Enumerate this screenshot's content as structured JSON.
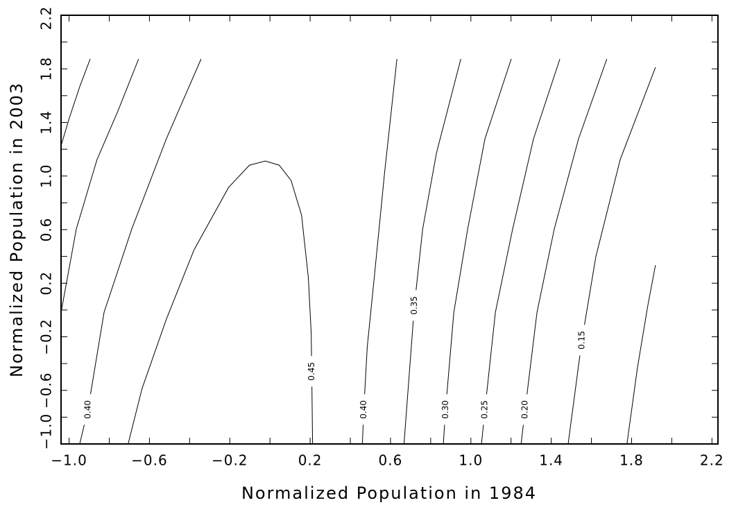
{
  "chart_data": {
    "type": "contour",
    "x_label": "Normalized Population in 1984",
    "y_label": "Normalized Population in 2003",
    "xlim": [
      -1.04,
      2.23
    ],
    "ylim": [
      -1.0,
      2.2
    ],
    "xticks": [
      {
        "value": -1.0,
        "label": "−1.0"
      },
      {
        "value": -0.6,
        "label": "−0.6"
      },
      {
        "value": -0.2,
        "label": "−0.2"
      },
      0.2,
      0.6,
      {
        "value": 1.0,
        "label": "1.0"
      },
      1.4,
      1.8,
      2.2
    ],
    "yticks": [
      {
        "value": -1.0,
        "label": "−1.0"
      },
      {
        "value": -0.6,
        "label": "−0.6"
      },
      {
        "value": -0.2,
        "label": "−0.2"
      },
      0.2,
      0.6,
      {
        "value": 1.0,
        "label": "1.0"
      },
      1.4,
      1.8,
      2.2
    ],
    "xminorticks": [
      -0.8,
      -0.4,
      0.0,
      0.4,
      0.8,
      1.2,
      1.6,
      2.0
    ],
    "yminorticks": [
      -0.8,
      -0.4,
      0.0,
      0.4,
      0.8,
      1.2,
      1.6,
      2.0
    ],
    "color": "#000000",
    "contours": [
      {
        "x": [
          -1.04,
          -0.999,
          -0.947,
          -0.895
        ],
        "y": [
          1.226,
          1.433,
          1.666,
          1.874
        ]
      },
      {
        "x": [
          -1.04,
          -0.964,
          -0.861,
          -0.757,
          -0.654
        ],
        "y": [
          -0.018,
          0.604,
          1.122,
          1.485,
          1.874
        ]
      },
      {
        "label": "0.40",
        "x": [
          -0.947,
          -0.906,
          -0.826,
          -0.688,
          -0.516,
          -0.343
        ],
        "y": [
          -1.0,
          -0.743,
          -0.018,
          0.604,
          1.278,
          1.874
        ]
      },
      {
        "label": "0.45",
        "x": [
          0.212,
          0.208,
          0.205,
          0.191,
          0.157,
          0.105,
          0.046,
          -0.023,
          -0.102,
          -0.206,
          -0.378,
          -0.516,
          -0.637,
          -0.706
        ],
        "y": [
          -1.0,
          -0.458,
          -0.173,
          0.241,
          0.708,
          0.967,
          1.081,
          1.112,
          1.081,
          0.915,
          0.449,
          -0.069,
          -0.588,
          -1.0
        ]
      },
      {
        "label": "0.40",
        "x": [
          0.46,
          0.467,
          0.484,
          0.519,
          0.57,
          0.632
        ],
        "y": [
          -1.0,
          -0.743,
          -0.277,
          0.241,
          1.019,
          1.874
        ]
      },
      {
        "label": "0.35",
        "x": [
          0.667,
          0.719,
          0.76,
          0.829,
          0.95
        ],
        "y": [
          -1.0,
          0.034,
          0.604,
          1.174,
          1.874
        ]
      },
      {
        "label": "0.30",
        "x": [
          0.863,
          0.874,
          0.915,
          0.984,
          1.07,
          1.201
        ],
        "y": [
          -1.0,
          -0.743,
          -0.018,
          0.604,
          1.278,
          1.874
        ]
      },
      {
        "label": "0.25",
        "x": [
          1.053,
          1.07,
          1.122,
          1.208,
          1.312,
          1.443
        ],
        "y": [
          -1.0,
          -0.743,
          -0.018,
          0.604,
          1.278,
          1.874
        ]
      },
      {
        "label": "0.20",
        "x": [
          1.25,
          1.27,
          1.329,
          1.415,
          1.536,
          1.677
        ],
        "y": [
          -1.0,
          -0.743,
          -0.018,
          0.604,
          1.278,
          1.874
        ]
      },
      {
        "label": "0.15",
        "x": [
          1.484,
          1.553,
          1.622,
          1.743,
          1.919
        ],
        "y": [
          -1.0,
          -0.225,
          0.397,
          1.122,
          1.811
        ]
      },
      {
        "x": [
          1.777,
          1.829,
          1.881,
          1.919
        ],
        "y": [
          -1.0,
          -0.432,
          0.034,
          0.335
        ]
      }
    ]
  }
}
